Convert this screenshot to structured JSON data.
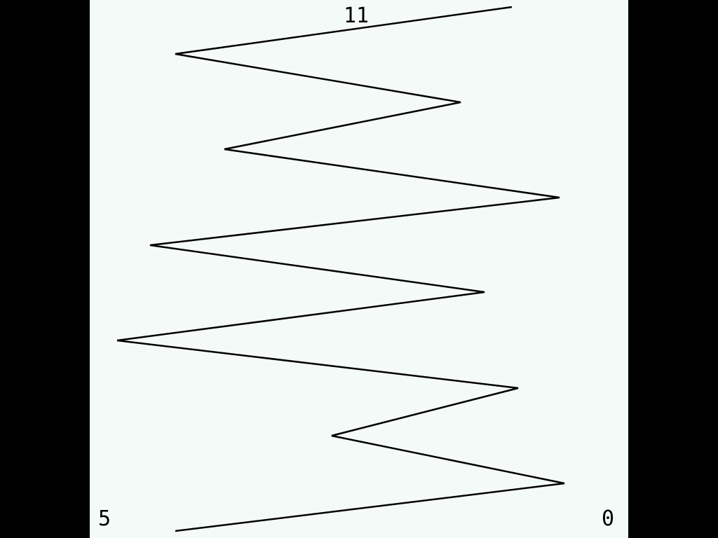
{
  "colors": {
    "background": "#f4faf7",
    "line": "#000000",
    "border": "#000000",
    "text": "#000000"
  },
  "hud": {
    "top_value": "11",
    "bottom_left_value": "5",
    "bottom_right_value": "0"
  }
}
